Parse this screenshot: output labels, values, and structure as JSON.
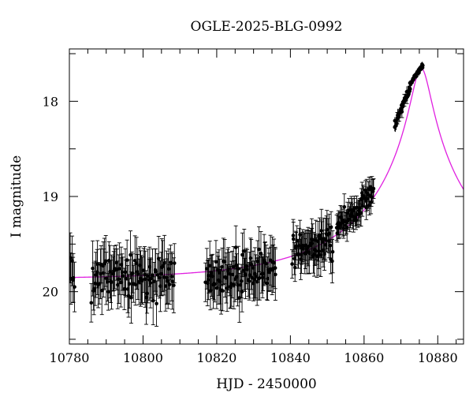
{
  "chart_data": {
    "type": "scatter",
    "title": "OGLE-2025-BLG-0992",
    "xlabel": "HJD - 2450000",
    "ylabel": "I magnitude",
    "xlim": [
      10780,
      10887
    ],
    "ylim": [
      20.55,
      17.45
    ],
    "y_inverted": true,
    "grid": false,
    "x_ticks": [
      10780,
      10800,
      10820,
      10840,
      10860,
      10880
    ],
    "y_ticks": [
      18,
      19,
      20
    ],
    "colors": {
      "points": "#000000",
      "model": "#e020e0"
    },
    "series": [
      {
        "kind": "points_with_errorbars",
        "segments": [
          {
            "x_start": 10780.2,
            "x_end": 10781.4,
            "n": 6,
            "mag_start": 19.85,
            "mag_end": 19.85,
            "scatter": 0.3,
            "err": 0.26
          },
          {
            "x_start": 10786.0,
            "x_end": 10808.5,
            "n": 95,
            "mag_start": 19.83,
            "mag_end": 19.82,
            "scatter": 0.26,
            "err": 0.24
          },
          {
            "x_start": 10817.0,
            "x_end": 10836.0,
            "n": 90,
            "mag_start": 19.83,
            "mag_end": 19.78,
            "scatter": 0.24,
            "err": 0.22
          },
          {
            "x_start": 10840.5,
            "x_end": 10851.5,
            "n": 60,
            "mag_start": 19.62,
            "mag_end": 19.5,
            "scatter": 0.22,
            "err": 0.19
          },
          {
            "x_start": 10852.5,
            "x_end": 10862.5,
            "n": 60,
            "mag_start": 19.35,
            "mag_end": 18.95,
            "scatter": 0.13,
            "err": 0.12
          },
          {
            "x_start": 10868.3,
            "x_end": 10872.5,
            "n": 40,
            "mag_start": 18.25,
            "mag_end": 17.85,
            "scatter": 0.05,
            "err": 0.05
          },
          {
            "x_start": 10872.5,
            "x_end": 10876.0,
            "n": 45,
            "mag_start": 17.82,
            "mag_end": 17.62,
            "scatter": 0.03,
            "err": 0.03
          }
        ]
      },
      {
        "kind": "model_curve",
        "model": "point-lens",
        "t0": 10875.5,
        "tE": 35,
        "u0": 0.07,
        "baseline_mag": 19.87,
        "peak_mag": 17.65
      }
    ]
  }
}
